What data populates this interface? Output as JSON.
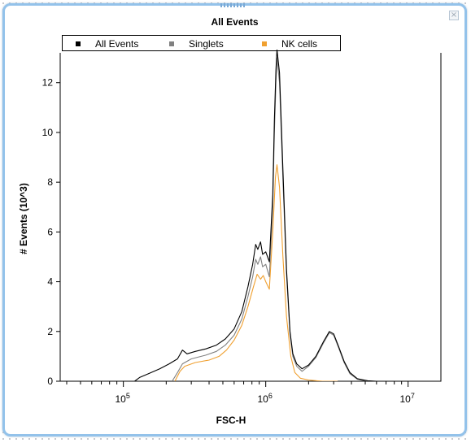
{
  "chart_data": {
    "type": "line",
    "title": "All Events",
    "xlabel": "FSC-H",
    "ylabel": "# Events (10^3)",
    "x_scale": "log",
    "xlim": [
      36000,
      17000000
    ],
    "ylim": [
      0,
      13.2
    ],
    "yticks": [
      0,
      2,
      4,
      6,
      8,
      10,
      12
    ],
    "xticks": [
      {
        "value": 100000,
        "label": "10",
        "exp": "5"
      },
      {
        "value": 1000000,
        "label": "10",
        "exp": "6"
      },
      {
        "value": 10000000,
        "label": "10",
        "exp": "7"
      }
    ],
    "legend_position": "top",
    "series": [
      {
        "name": "All Events",
        "color": "#000000",
        "points": [
          [
            120000,
            0
          ],
          [
            130000,
            0.15
          ],
          [
            150000,
            0.3
          ],
          [
            180000,
            0.5
          ],
          [
            210000,
            0.7
          ],
          [
            240000,
            0.9
          ],
          [
            260000,
            1.25
          ],
          [
            280000,
            1.1
          ],
          [
            320000,
            1.2
          ],
          [
            380000,
            1.3
          ],
          [
            450000,
            1.45
          ],
          [
            520000,
            1.7
          ],
          [
            600000,
            2.1
          ],
          [
            680000,
            2.8
          ],
          [
            750000,
            3.8
          ],
          [
            810000,
            4.7
          ],
          [
            850000,
            5.5
          ],
          [
            880000,
            5.3
          ],
          [
            920000,
            5.6
          ],
          [
            950000,
            5.1
          ],
          [
            1000000,
            5.2
          ],
          [
            1060000,
            4.8
          ],
          [
            1120000,
            7.5
          ],
          [
            1150000,
            10.5
          ],
          [
            1180000,
            12.5
          ],
          [
            1200000,
            13.5
          ],
          [
            1250000,
            12.4
          ],
          [
            1320000,
            8.5
          ],
          [
            1400000,
            4.5
          ],
          [
            1480000,
            2.0
          ],
          [
            1550000,
            1.1
          ],
          [
            1650000,
            0.7
          ],
          [
            1800000,
            0.5
          ],
          [
            2000000,
            0.65
          ],
          [
            2250000,
            1.0
          ],
          [
            2550000,
            1.6
          ],
          [
            2800000,
            2.0
          ],
          [
            3000000,
            1.9
          ],
          [
            3250000,
            1.4
          ],
          [
            3550000,
            0.8
          ],
          [
            3900000,
            0.35
          ],
          [
            4400000,
            0.1
          ],
          [
            5200000,
            0.02
          ],
          [
            6000000,
            0
          ]
        ]
      },
      {
        "name": "Singlets",
        "color": "#808080",
        "points": [
          [
            220000,
            0
          ],
          [
            240000,
            0.35
          ],
          [
            260000,
            0.7
          ],
          [
            300000,
            0.9
          ],
          [
            380000,
            1.05
          ],
          [
            450000,
            1.2
          ],
          [
            520000,
            1.45
          ],
          [
            600000,
            1.85
          ],
          [
            680000,
            2.5
          ],
          [
            750000,
            3.4
          ],
          [
            810000,
            4.2
          ],
          [
            850000,
            4.9
          ],
          [
            880000,
            4.7
          ],
          [
            920000,
            5.0
          ],
          [
            950000,
            4.6
          ],
          [
            1000000,
            4.7
          ],
          [
            1060000,
            4.2
          ],
          [
            1120000,
            7.0
          ],
          [
            1150000,
            10.0
          ],
          [
            1180000,
            12.0
          ],
          [
            1200000,
            13.0
          ],
          [
            1250000,
            12.0
          ],
          [
            1320000,
            8.1
          ],
          [
            1400000,
            4.3
          ],
          [
            1480000,
            1.9
          ],
          [
            1550000,
            1.0
          ],
          [
            1650000,
            0.6
          ],
          [
            1800000,
            0.4
          ],
          [
            2000000,
            0.6
          ],
          [
            2250000,
            0.95
          ],
          [
            2550000,
            1.55
          ],
          [
            2800000,
            1.95
          ],
          [
            3000000,
            1.85
          ],
          [
            3250000,
            1.35
          ],
          [
            3550000,
            0.75
          ],
          [
            3900000,
            0.3
          ],
          [
            4400000,
            0.08
          ],
          [
            5200000,
            0
          ]
        ]
      },
      {
        "name": "NK cells",
        "color": "#f0a030",
        "points": [
          [
            230000,
            0
          ],
          [
            250000,
            0.4
          ],
          [
            270000,
            0.6
          ],
          [
            320000,
            0.75
          ],
          [
            400000,
            0.85
          ],
          [
            470000,
            1.0
          ],
          [
            530000,
            1.25
          ],
          [
            600000,
            1.65
          ],
          [
            680000,
            2.25
          ],
          [
            750000,
            3.0
          ],
          [
            820000,
            3.8
          ],
          [
            870000,
            4.3
          ],
          [
            920000,
            4.1
          ],
          [
            960000,
            4.25
          ],
          [
            1000000,
            4.0
          ],
          [
            1060000,
            3.7
          ],
          [
            1120000,
            6.0
          ],
          [
            1170000,
            8.2
          ],
          [
            1200000,
            8.7
          ],
          [
            1250000,
            7.8
          ],
          [
            1320000,
            5.0
          ],
          [
            1400000,
            2.6
          ],
          [
            1500000,
            1.0
          ],
          [
            1600000,
            0.35
          ],
          [
            1750000,
            0.12
          ],
          [
            2000000,
            0.05
          ],
          [
            2500000,
            0
          ],
          [
            3200000,
            0
          ]
        ]
      }
    ]
  }
}
